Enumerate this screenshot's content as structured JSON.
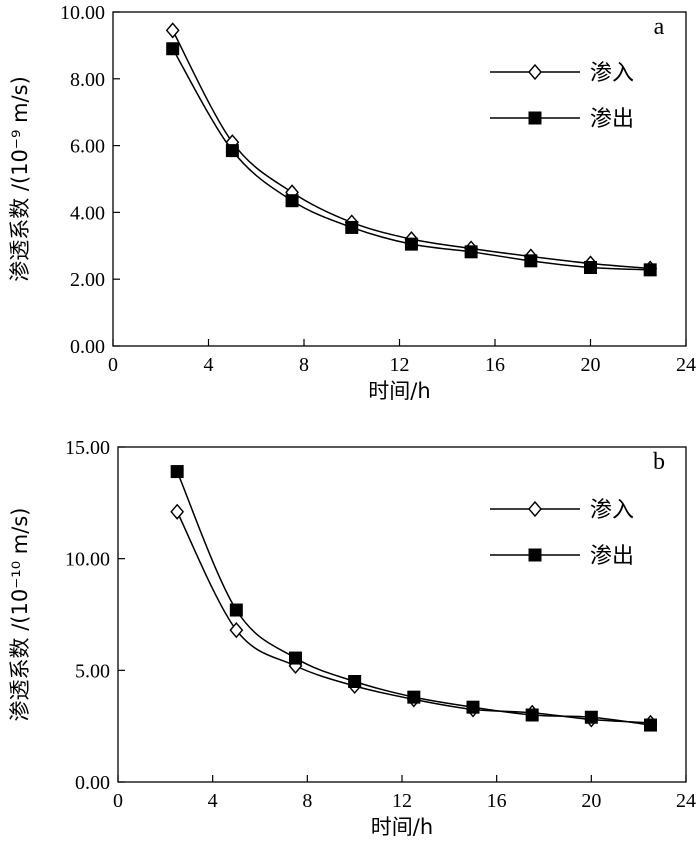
{
  "chart_data": [
    {
      "type": "line",
      "panel_label": "a",
      "xlabel": "时间/h",
      "ylabel": "渗透系数 /(10⁻⁹ m/s)",
      "xlim": [
        0,
        24
      ],
      "ylim": [
        0,
        10
      ],
      "xticks": [
        0,
        4,
        8,
        12,
        16,
        20,
        24
      ],
      "xtick_labels": [
        "0",
        "4",
        "8",
        "12",
        "16",
        "20",
        "24"
      ],
      "yticks": [
        0,
        2,
        4,
        6,
        8,
        10
      ],
      "ytick_labels": [
        "0.00",
        "2.00",
        "4.00",
        "6.00",
        "8.00",
        "10.00"
      ],
      "legend_position": "top-right",
      "grid": false,
      "series": [
        {
          "name": "渗入",
          "marker": "open-diamond",
          "x": [
            2.5,
            5,
            7.5,
            10,
            12.5,
            15,
            17.5,
            20,
            22.5
          ],
          "y": [
            9.45,
            6.1,
            4.6,
            3.7,
            3.2,
            2.92,
            2.68,
            2.47,
            2.32
          ]
        },
        {
          "name": "渗出",
          "marker": "filled-square",
          "x": [
            2.5,
            5,
            7.5,
            10,
            12.5,
            15,
            17.5,
            20,
            22.5
          ],
          "y": [
            8.9,
            5.85,
            4.35,
            3.55,
            3.05,
            2.82,
            2.55,
            2.35,
            2.28
          ]
        }
      ]
    },
    {
      "type": "line",
      "panel_label": "b",
      "xlabel": "时间/h",
      "ylabel": "渗透系数 /(10⁻¹⁰ m/s)",
      "xlim": [
        0,
        24
      ],
      "ylim": [
        0,
        15
      ],
      "xticks": [
        0,
        4,
        8,
        12,
        16,
        20,
        24
      ],
      "xtick_labels": [
        "0",
        "4",
        "8",
        "12",
        "16",
        "20",
        "24"
      ],
      "yticks": [
        0,
        5,
        10,
        15
      ],
      "ytick_labels": [
        "0.00",
        "5.00",
        "10.00",
        "15.00"
      ],
      "legend_position": "top-right",
      "grid": false,
      "series": [
        {
          "name": "渗入",
          "marker": "open-diamond",
          "x": [
            2.5,
            5,
            7.5,
            10,
            12.5,
            15,
            17.5,
            20,
            22.5
          ],
          "y": [
            12.1,
            6.8,
            5.2,
            4.3,
            3.7,
            3.25,
            3.1,
            2.8,
            2.65
          ]
        },
        {
          "name": "渗出",
          "marker": "filled-square",
          "x": [
            2.5,
            5,
            7.5,
            10,
            12.5,
            15,
            17.5,
            20,
            22.5
          ],
          "y": [
            13.9,
            7.7,
            5.55,
            4.5,
            3.8,
            3.35,
            3.0,
            2.9,
            2.55
          ]
        }
      ]
    }
  ]
}
